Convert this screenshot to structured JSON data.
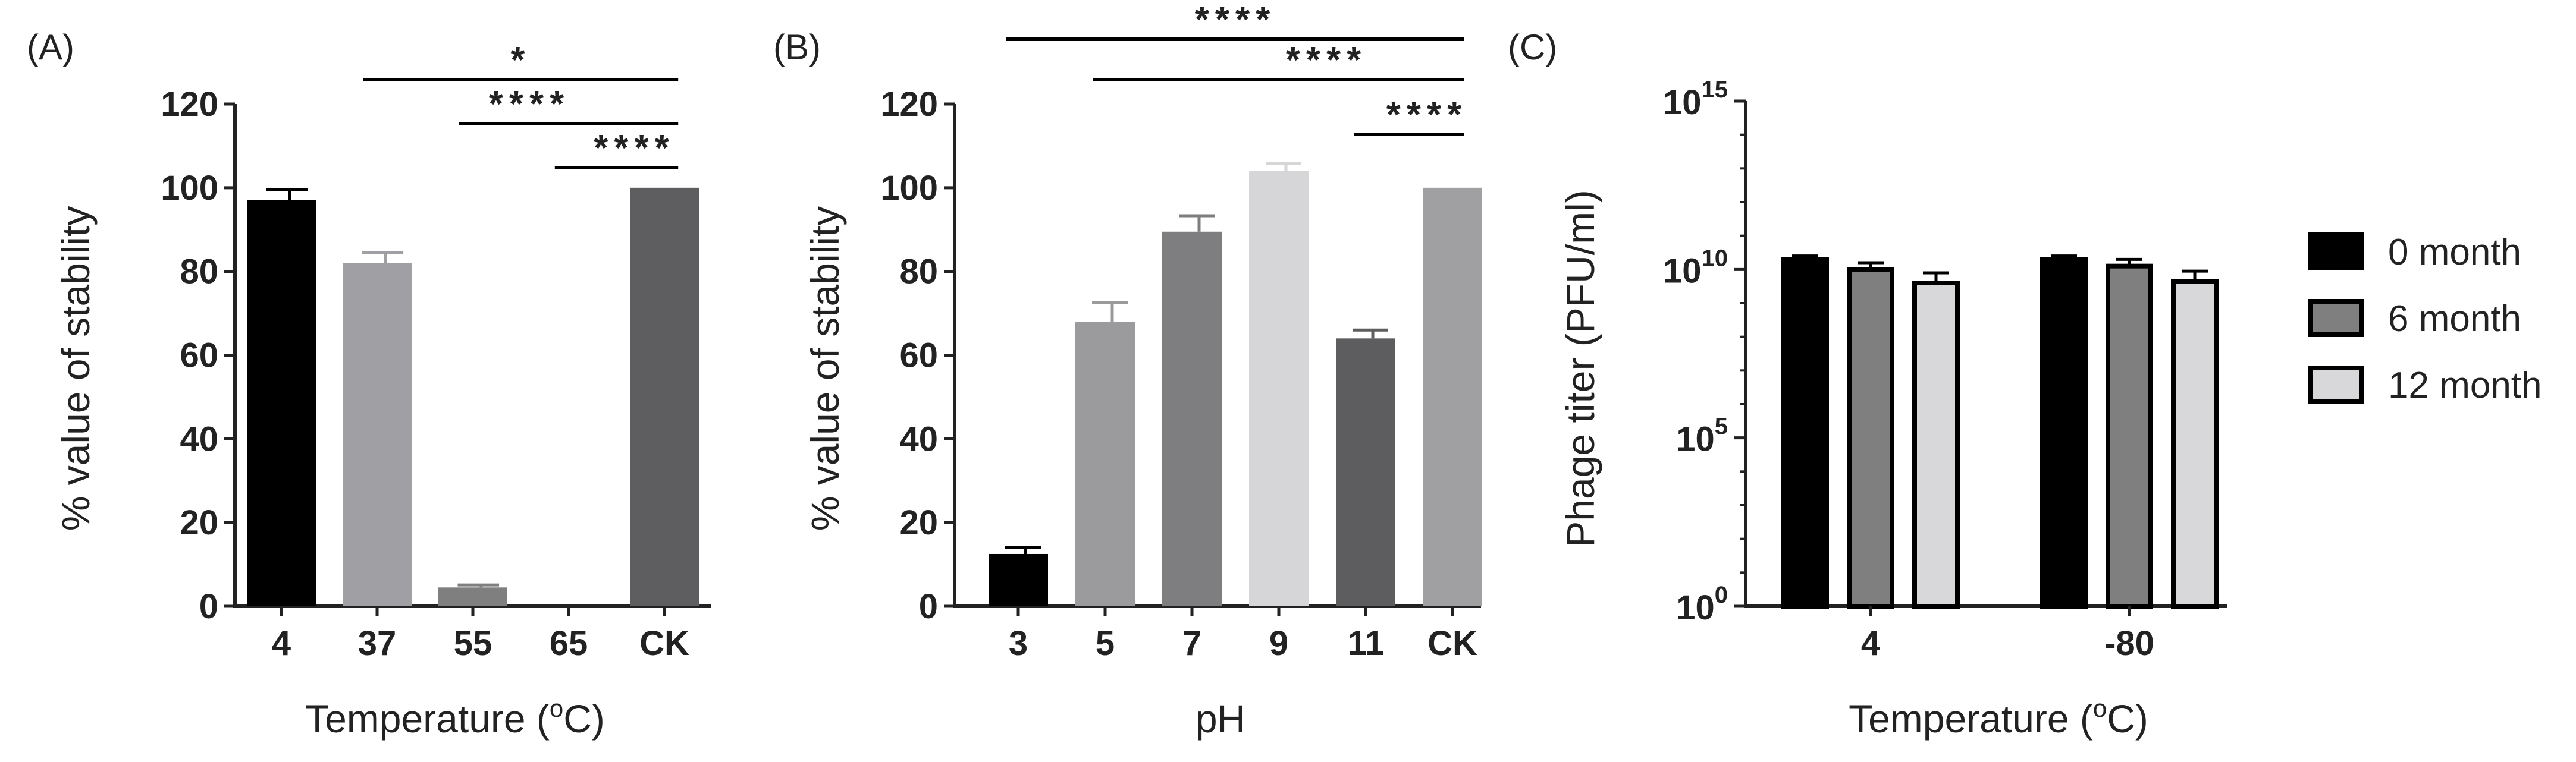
{
  "chart_data": [
    {
      "panel_label": "(A)",
      "type": "bar",
      "ylabel": "% value of stability",
      "xlabel_main": "Temperature (",
      "xlabel_sup": "o",
      "xlabel_end": "C)",
      "ylim": [
        0,
        120
      ],
      "yticks": [
        "0",
        "20",
        "40",
        "60",
        "80",
        "100",
        "120"
      ],
      "categories": [
        "4",
        "37",
        "55",
        "65",
        "CK"
      ],
      "values": [
        97,
        82,
        4.5,
        0,
        100
      ],
      "errors": [
        2.5,
        2.5,
        0.6,
        0,
        0
      ],
      "colors": [
        "#000000",
        "#a0a0a4",
        "#7f7f80",
        "#7f7f80",
        "#5e5e60"
      ],
      "significance": [
        {
          "from": 1,
          "to": 4,
          "label": "*"
        },
        {
          "from": 2,
          "to": 4,
          "label": "****"
        },
        {
          "from": 3,
          "to": 4,
          "label": "****"
        }
      ]
    },
    {
      "panel_label": "(B)",
      "type": "bar",
      "ylabel": "% value of stability",
      "xlabel_main": "pH",
      "ylim": [
        0,
        120
      ],
      "yticks": [
        "0",
        "20",
        "40",
        "60",
        "80",
        "100",
        "120"
      ],
      "categories": [
        "3",
        "5",
        "7",
        "9",
        "11",
        "CK"
      ],
      "values": [
        12.5,
        68,
        89.5,
        104,
        64,
        100
      ],
      "errors": [
        1.5,
        4.5,
        3.8,
        1.8,
        2.0,
        0
      ],
      "colors": [
        "#000000",
        "#9b9b9d",
        "#7e7e80",
        "#d6d6d8",
        "#5d5d5f",
        "#a0a0a2"
      ],
      "significance": [
        {
          "from": 0,
          "to": 5,
          "label": "****"
        },
        {
          "from": 1,
          "to": 5,
          "label": "****"
        },
        {
          "from": 4,
          "to": 5,
          "label": "****"
        }
      ]
    },
    {
      "panel_label": "(C)",
      "type": "bar",
      "ylabel": "Phage titer (PFU/ml)",
      "xlabel_main": "Temperature (",
      "xlabel_sup": "o",
      "xlabel_end": "C)",
      "yscale": "log10",
      "ylim_exponent": [
        0,
        15
      ],
      "yticks": [
        {
          "base": "10",
          "exp": "0",
          "value_exp": 0
        },
        {
          "base": "10",
          "exp": "5",
          "value_exp": 5
        },
        {
          "base": "10",
          "exp": "10",
          "value_exp": 10
        },
        {
          "base": "10",
          "exp": "15",
          "value_exp": 15
        }
      ],
      "categories": [
        "4",
        "-80"
      ],
      "series": [
        {
          "name": "0 month",
          "color": "#000000",
          "log_values": [
            10.3,
            10.3
          ],
          "log_errors": [
            0.1,
            0.1
          ]
        },
        {
          "name": "6 month",
          "color": "#7f7f80",
          "log_values": [
            10.0,
            10.1
          ],
          "log_errors": [
            0.2,
            0.2
          ]
        },
        {
          "name": "12 month",
          "color": "#d8d8da",
          "log_values": [
            9.6,
            9.65
          ],
          "log_errors": [
            0.3,
            0.3
          ]
        }
      ],
      "legend_position": "right"
    }
  ]
}
